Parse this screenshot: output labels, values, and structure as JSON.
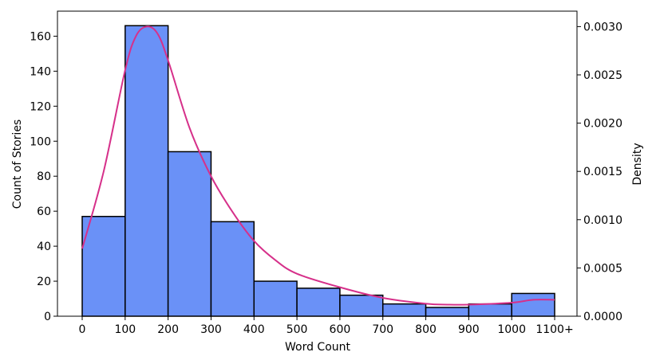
{
  "chart_data": {
    "type": "bar",
    "title": "",
    "xlabel": "Word Count",
    "ylabel": "Count of Stories",
    "y2label": "Density",
    "bin_edges": [
      0,
      100,
      200,
      300,
      400,
      500,
      600,
      700,
      800,
      900,
      1000,
      1100
    ],
    "x_tick_labels": [
      "0",
      "100",
      "200",
      "300",
      "400",
      "500",
      "600",
      "700",
      "800",
      "900",
      "1000",
      "1100+"
    ],
    "values": [
      57,
      166,
      94,
      54,
      20,
      16,
      12,
      7,
      5,
      7,
      13
    ],
    "ylim": [
      0,
      174.3
    ],
    "y_ticks": [
      0,
      20,
      40,
      60,
      80,
      100,
      120,
      140,
      160
    ],
    "y2lim": [
      0,
      0.00316
    ],
    "y2_ticks": [
      "0.0000",
      "0.0005",
      "0.0010",
      "0.0015",
      "0.0020",
      "0.0025",
      "0.0030"
    ],
    "density_curve": {
      "x": [
        0,
        50,
        100,
        125,
        150,
        175,
        200,
        250,
        300,
        350,
        400,
        450,
        500,
        600,
        700,
        800,
        850,
        900,
        1000,
        1050,
        1100
      ],
      "y": [
        0.0007,
        0.0015,
        0.00255,
        0.0029,
        0.003,
        0.00293,
        0.00265,
        0.00195,
        0.00145,
        0.00108,
        0.00078,
        0.00058,
        0.00044,
        0.0003,
        0.00019,
        0.00013,
        0.00012,
        0.00012,
        0.00014,
        0.00017,
        0.00017
      ]
    },
    "colors": {
      "bar_fill": "#6a91f7",
      "bar_edge": "#000000",
      "curve": "#d6308a"
    },
    "grid": false
  }
}
